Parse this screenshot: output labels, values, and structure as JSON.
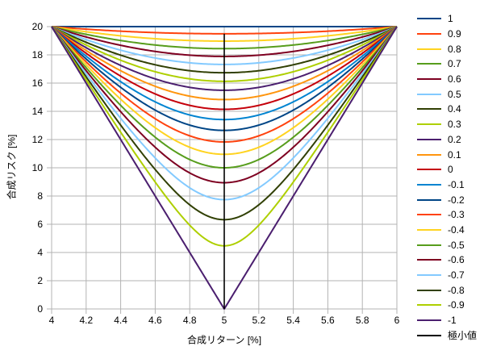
{
  "chart_data": {
    "type": "line",
    "title": "",
    "xlabel": "合成リターン [%]",
    "ylabel": "合成リスク [%]",
    "xlim": [
      4,
      6
    ],
    "ylim": [
      0,
      20
    ],
    "x_ticks": [
      "4",
      "4.2",
      "4.4",
      "4.6",
      "4.8",
      "5",
      "5.2",
      "5.4",
      "5.6",
      "5.8",
      "6"
    ],
    "y_ticks": [
      "0",
      "2",
      "4",
      "6",
      "8",
      "10",
      "12",
      "14",
      "16",
      "18",
      "20"
    ],
    "grid": true,
    "legend_position": "right",
    "description": "Combined risk vs combined return of a two-asset portfolio for correlation coefficients from 1 to -1; every curve starts at (4,20) and ends at (6,20), with minimum risk at return 5%",
    "portfolio_params": {
      "asset1": {
        "return_pct": 4,
        "risk_pct": 20
      },
      "asset2": {
        "return_pct": 6,
        "risk_pct": 20
      }
    },
    "series": [
      {
        "name": "1",
        "correlation": 1,
        "color": "#004586",
        "risk_at_return_5": 20
      },
      {
        "name": "0.9",
        "correlation": 0.9,
        "color": "#FF420E",
        "risk_at_return_5": 19.49
      },
      {
        "name": "0.8",
        "correlation": 0.8,
        "color": "#FFD320",
        "risk_at_return_5": 18.97
      },
      {
        "name": "0.7",
        "correlation": 0.7,
        "color": "#579D1C",
        "risk_at_return_5": 18.44
      },
      {
        "name": "0.6",
        "correlation": 0.6,
        "color": "#7E0021",
        "risk_at_return_5": 17.89
      },
      {
        "name": "0.5",
        "correlation": 0.5,
        "color": "#83CAFF",
        "risk_at_return_5": 17.32
      },
      {
        "name": "0.4",
        "correlation": 0.4,
        "color": "#314004",
        "risk_at_return_5": 16.73
      },
      {
        "name": "0.3",
        "correlation": 0.3,
        "color": "#AECF00",
        "risk_at_return_5": 16.12
      },
      {
        "name": "0.2",
        "correlation": 0.2,
        "color": "#4B1F6F",
        "risk_at_return_5": 15.49
      },
      {
        "name": "0.1",
        "correlation": 0.1,
        "color": "#FF950E",
        "risk_at_return_5": 14.83
      },
      {
        "name": "0",
        "correlation": 0,
        "color": "#C5000B",
        "risk_at_return_5": 14.14
      },
      {
        "name": "-0.1",
        "correlation": -0.1,
        "color": "#0084D1",
        "risk_at_return_5": 13.42
      },
      {
        "name": "-0.2",
        "correlation": -0.2,
        "color": "#004586",
        "risk_at_return_5": 12.65
      },
      {
        "name": "-0.3",
        "correlation": -0.3,
        "color": "#FF420E",
        "risk_at_return_5": 11.83
      },
      {
        "name": "-0.4",
        "correlation": -0.4,
        "color": "#FFD320",
        "risk_at_return_5": 10.95
      },
      {
        "name": "-0.5",
        "correlation": -0.5,
        "color": "#579D1C",
        "risk_at_return_5": 10
      },
      {
        "name": "-0.6",
        "correlation": -0.6,
        "color": "#7E0021",
        "risk_at_return_5": 8.94
      },
      {
        "name": "-0.7",
        "correlation": -0.7,
        "color": "#83CAFF",
        "risk_at_return_5": 7.75
      },
      {
        "name": "-0.8",
        "correlation": -0.8,
        "color": "#314004",
        "risk_at_return_5": 6.32
      },
      {
        "name": "-0.9",
        "correlation": -0.9,
        "color": "#AECF00",
        "risk_at_return_5": 4.47
      },
      {
        "name": "-1",
        "correlation": -1,
        "color": "#4B1F6F",
        "risk_at_return_5": 0
      }
    ],
    "minimum_line": {
      "name": "極小値",
      "color": "#000000",
      "x": 5,
      "y_from": 0,
      "y_to": 19.49
    }
  },
  "colors": {
    "grid": "#b3b3b3",
    "background": "#ffffff",
    "text": "#000000"
  }
}
